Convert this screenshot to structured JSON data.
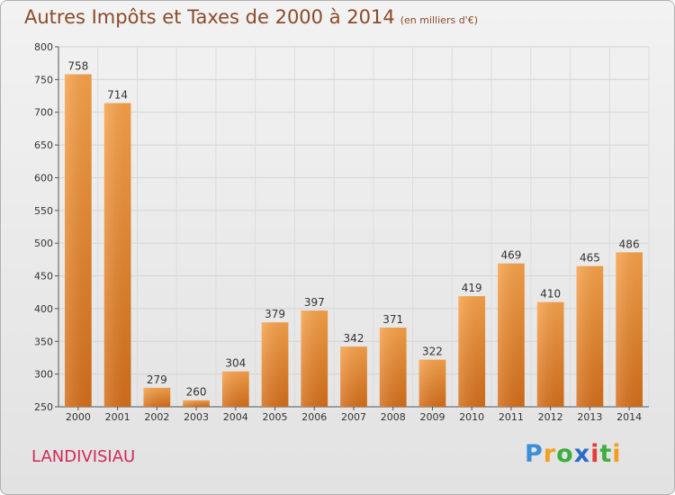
{
  "title": "Autres Impôts et Taxes de 2000 à 2014",
  "subtitle": "(en milliers d'€)",
  "city": "LANDIVISIAU",
  "logo": {
    "letters": [
      "P",
      "r",
      "o",
      "x",
      "i",
      "t",
      "i"
    ],
    "colors": [
      "#3a8fd6",
      "#f0a020",
      "#3fae3f",
      "#2b6cc4",
      "#e53a3a",
      "#3fae3f",
      "#f0a020"
    ]
  },
  "chart_data": {
    "type": "bar",
    "title": "Autres Impôts et Taxes de 2000 à 2014",
    "subtitle": "(en milliers d'€)",
    "categories": [
      "2000",
      "2001",
      "2002",
      "2003",
      "2004",
      "2005",
      "2006",
      "2007",
      "2008",
      "2009",
      "2010",
      "2011",
      "2012",
      "2013",
      "2014"
    ],
    "values": [
      758,
      714,
      279,
      260,
      304,
      379,
      397,
      342,
      371,
      322,
      419,
      469,
      410,
      465,
      486
    ],
    "ylim": [
      250,
      800
    ],
    "yticks": [
      250,
      300,
      350,
      400,
      450,
      500,
      550,
      600,
      650,
      700,
      750,
      800
    ],
    "grid": true,
    "bar_color": "#f0963c"
  }
}
